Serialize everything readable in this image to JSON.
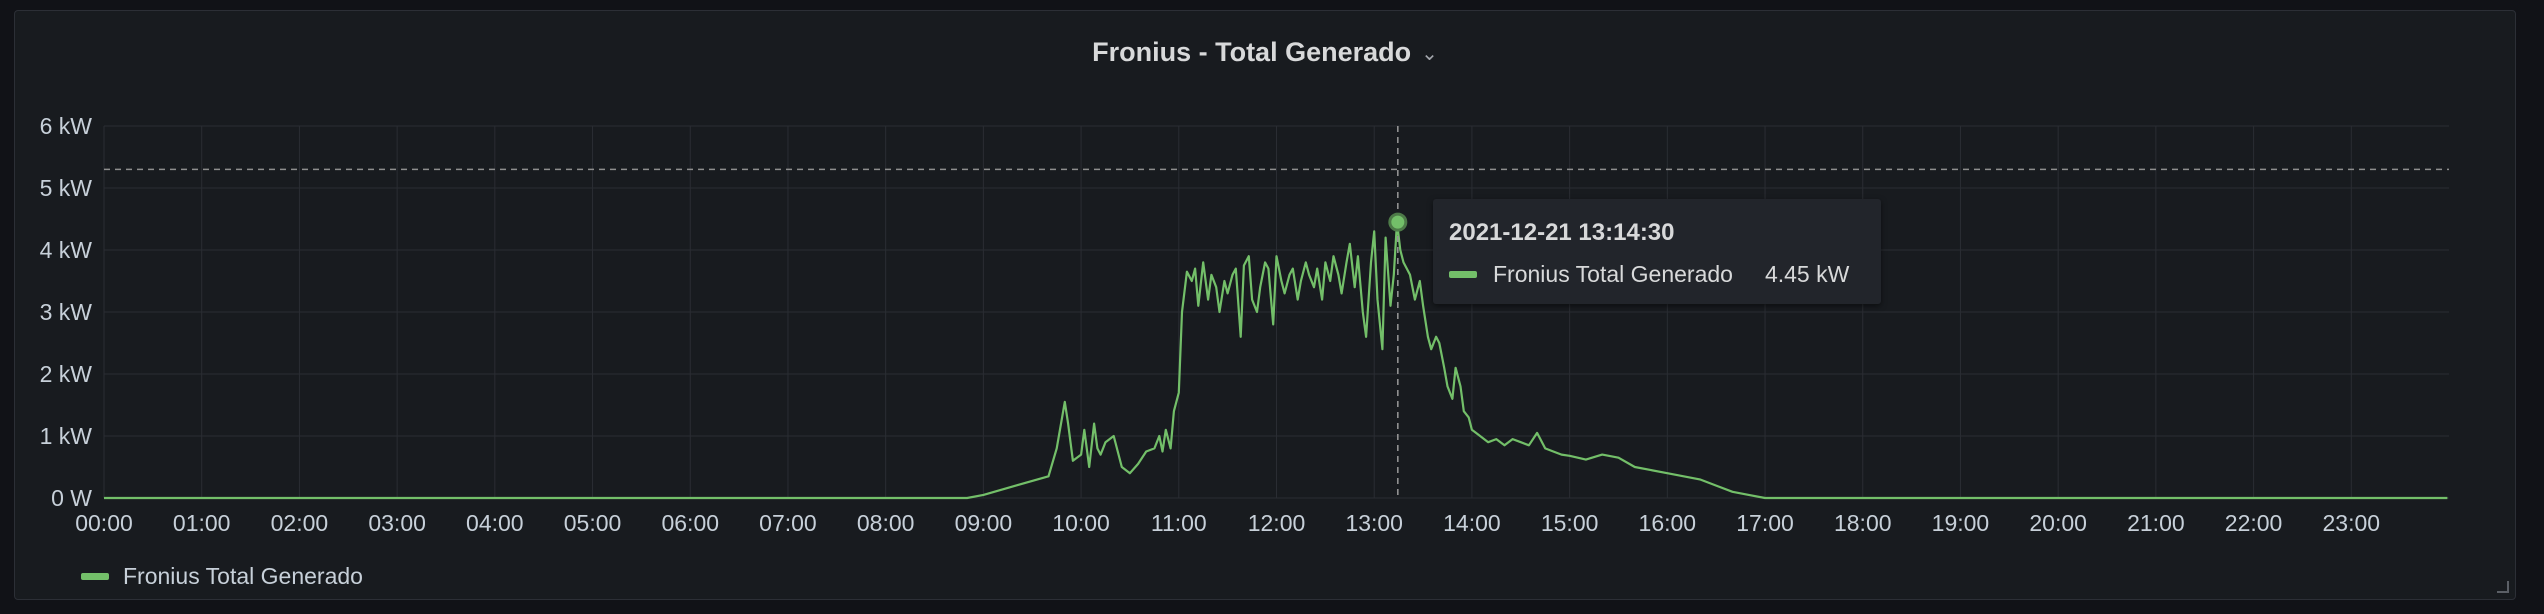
{
  "panel": {
    "title": "Fronius - Total Generado"
  },
  "colors": {
    "series": "#73bf69",
    "background": "#181b1f",
    "grid": "#2a2d33",
    "text": "#c7d0d9"
  },
  "icons": {
    "title_menu": "chevron-down-icon"
  },
  "chart_data": {
    "type": "line",
    "title": "Fronius - Total Generado",
    "xlabel": "",
    "ylabel": "",
    "xlim": [
      "00:00",
      "24:00"
    ],
    "ylim": [
      0,
      6
    ],
    "x_ticks": [
      "00:00",
      "01:00",
      "02:00",
      "03:00",
      "04:00",
      "05:00",
      "06:00",
      "07:00",
      "08:00",
      "09:00",
      "10:00",
      "11:00",
      "12:00",
      "13:00",
      "14:00",
      "15:00",
      "16:00",
      "17:00",
      "18:00",
      "19:00",
      "20:00",
      "21:00",
      "22:00",
      "23:00"
    ],
    "y_ticks": [
      "0 W",
      "1 kW",
      "2 kW",
      "3 kW",
      "4 kW",
      "5 kW",
      "6 kW"
    ],
    "grid": true,
    "legend_position": "bottom-left",
    "threshold": {
      "value": 5.3,
      "style": "dashed"
    },
    "series": [
      {
        "name": "Fronius Total Generado",
        "unit": "kW",
        "x": [
          "00:00",
          "08:50",
          "09:00",
          "09:20",
          "09:40",
          "09:45",
          "09:50",
          "09:52",
          "09:55",
          "10:00",
          "10:02",
          "10:05",
          "10:08",
          "10:10",
          "10:12",
          "10:15",
          "10:20",
          "10:25",
          "10:30",
          "10:35",
          "10:40",
          "10:45",
          "10:48",
          "10:50",
          "10:52",
          "10:55",
          "10:57",
          "11:00",
          "11:02",
          "11:05",
          "11:08",
          "11:10",
          "11:12",
          "11:15",
          "11:18",
          "11:20",
          "11:23",
          "11:25",
          "11:28",
          "11:30",
          "11:33",
          "11:35",
          "11:38",
          "11:40",
          "11:43",
          "11:45",
          "11:48",
          "11:50",
          "11:53",
          "11:55",
          "11:58",
          "12:00",
          "12:03",
          "12:05",
          "12:08",
          "12:10",
          "12:13",
          "12:15",
          "12:18",
          "12:20",
          "12:23",
          "12:25",
          "12:28",
          "12:30",
          "12:33",
          "12:35",
          "12:38",
          "12:40",
          "12:43",
          "12:45",
          "12:48",
          "12:50",
          "12:53",
          "12:55",
          "12:58",
          "13:00",
          "13:02",
          "13:05",
          "13:07",
          "13:10",
          "13:12",
          "13:14",
          "13:16",
          "13:18",
          "13:20",
          "13:22",
          "13:25",
          "13:28",
          "13:30",
          "13:33",
          "13:35",
          "13:38",
          "13:40",
          "13:43",
          "13:45",
          "13:48",
          "13:50",
          "13:53",
          "13:55",
          "13:58",
          "14:00",
          "14:05",
          "14:10",
          "14:15",
          "14:20",
          "14:25",
          "14:30",
          "14:35",
          "14:40",
          "14:45",
          "14:50",
          "14:55",
          "15:00",
          "15:05",
          "15:10",
          "15:20",
          "15:30",
          "15:40",
          "15:50",
          "16:00",
          "16:10",
          "16:20",
          "16:30",
          "16:40",
          "16:50",
          "17:00",
          "17:10",
          "17:20",
          "17:30",
          "17:40",
          "17:50",
          "18:00",
          "23:59"
        ],
        "values": [
          0,
          0,
          0.05,
          0.2,
          0.35,
          0.8,
          1.55,
          1.2,
          0.6,
          0.7,
          1.1,
          0.5,
          1.2,
          0.8,
          0.7,
          0.9,
          1.0,
          0.5,
          0.4,
          0.55,
          0.75,
          0.8,
          1.0,
          0.75,
          1.1,
          0.8,
          1.4,
          1.7,
          3.0,
          3.65,
          3.5,
          3.7,
          3.1,
          3.8,
          3.2,
          3.6,
          3.4,
          3.0,
          3.5,
          3.3,
          3.6,
          3.7,
          2.6,
          3.75,
          3.9,
          3.2,
          3.0,
          3.4,
          3.8,
          3.7,
          2.8,
          3.9,
          3.5,
          3.3,
          3.6,
          3.7,
          3.2,
          3.5,
          3.8,
          3.6,
          3.4,
          3.7,
          3.2,
          3.8,
          3.5,
          3.9,
          3.6,
          3.3,
          3.8,
          4.1,
          3.4,
          3.9,
          3.0,
          2.6,
          3.8,
          4.3,
          3.2,
          2.4,
          4.2,
          3.1,
          3.6,
          4.45,
          4.0,
          3.8,
          3.7,
          3.6,
          3.2,
          3.5,
          3.1,
          2.6,
          2.4,
          2.6,
          2.5,
          2.1,
          1.8,
          1.6,
          2.1,
          1.8,
          1.4,
          1.3,
          1.1,
          1.0,
          0.9,
          0.95,
          0.85,
          0.95,
          0.9,
          0.85,
          1.05,
          0.8,
          0.75,
          0.7,
          0.68,
          0.65,
          0.62,
          0.7,
          0.65,
          0.5,
          0.45,
          0.4,
          0.35,
          0.3,
          0.2,
          0.1,
          0.05,
          0,
          0,
          0,
          0,
          0,
          0,
          0,
          0
        ]
      }
    ]
  },
  "tooltip": {
    "time": "2021-12-21 13:14:30",
    "series": "Fronius Total Generado",
    "value": "4.45 kW",
    "x": "13:14:30",
    "y": 4.45
  },
  "legend": {
    "items": [
      "Fronius Total Generado"
    ]
  }
}
